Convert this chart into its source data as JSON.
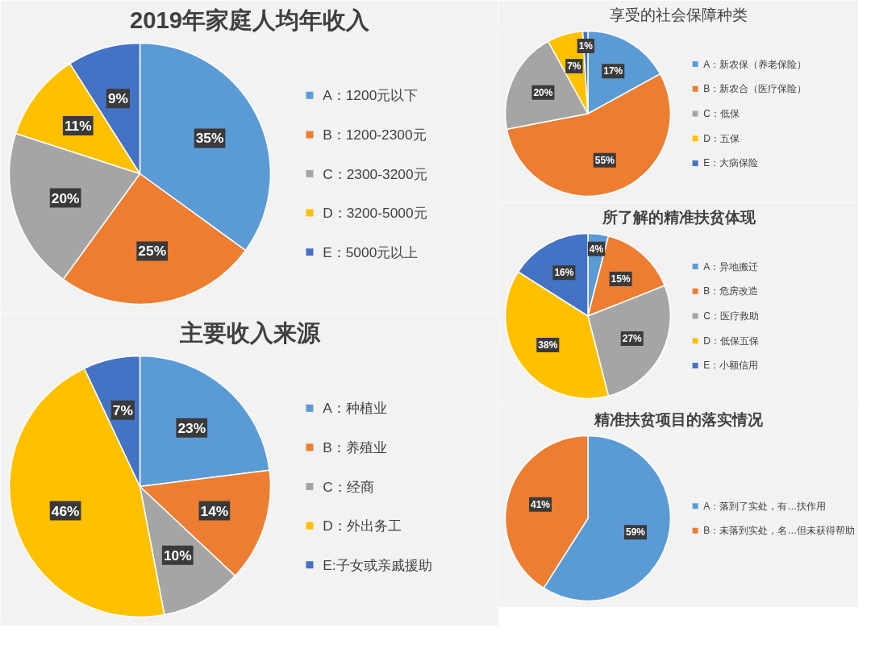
{
  "chart_data": [
    {
      "type": "pie",
      "title": "2019年家庭人均年收入",
      "categories": [
        "A：1200元以下",
        "B：1200-2300元",
        "C：2300-3200元",
        "D：3200-5000元",
        "E：5000元以上"
      ],
      "values": [
        35,
        25,
        20,
        11,
        9
      ],
      "value_labels": [
        "35%",
        "25%",
        "20%",
        "11%",
        "9%"
      ],
      "colors": [
        "#5b9bd5",
        "#ed7d31",
        "#a5a5a5",
        "#ffc000",
        "#4472c4"
      ],
      "legend": "right"
    },
    {
      "type": "pie",
      "title": "主要收入来源",
      "categories": [
        "A：种植业",
        "B：养殖业",
        "C：经商",
        "D：外出务工",
        "E:子女或亲戚援助"
      ],
      "values": [
        23,
        14,
        10,
        46,
        7
      ],
      "value_labels": [
        "23%",
        "14%",
        "10%",
        "46%",
        "7%"
      ],
      "colors": [
        "#5b9bd5",
        "#ed7d31",
        "#a5a5a5",
        "#ffc000",
        "#4472c4"
      ],
      "legend": "right"
    },
    {
      "type": "pie",
      "title": "享受的社会保障种类",
      "categories": [
        "A：新农保（养老保险）",
        "B：新农合（医疗保险）",
        "C：低保",
        "D：五保",
        "E：大病保险"
      ],
      "values": [
        17,
        55,
        20,
        7,
        1
      ],
      "value_labels": [
        "17%",
        "55%",
        "20%",
        "7%",
        "1%"
      ],
      "colors": [
        "#5b9bd5",
        "#ed7d31",
        "#a5a5a5",
        "#ffc000",
        "#4472c4"
      ],
      "legend": "right"
    },
    {
      "type": "pie",
      "title": "所了解的精准扶贫体现",
      "categories": [
        "A：异地搬迁",
        "B：危房改造",
        "C：医疗救助",
        "D：低保五保",
        "E：小额信用"
      ],
      "values": [
        4,
        15,
        27,
        38,
        16
      ],
      "value_labels": [
        "4%",
        "15%",
        "27%",
        "38%",
        "16%"
      ],
      "colors": [
        "#5b9bd5",
        "#ed7d31",
        "#a5a5a5",
        "#ffc000",
        "#4472c4"
      ],
      "legend": "right"
    },
    {
      "type": "pie",
      "title": "精准扶贫项目的落实情况",
      "categories": [
        "A：落到了实处，有…扶作用",
        "B：未落到实处，名…但未获得帮助"
      ],
      "values": [
        59,
        41
      ],
      "value_labels": [
        "59%",
        "41%"
      ],
      "colors": [
        "#5b9bd5",
        "#ed7d31"
      ],
      "legend": "right"
    }
  ]
}
